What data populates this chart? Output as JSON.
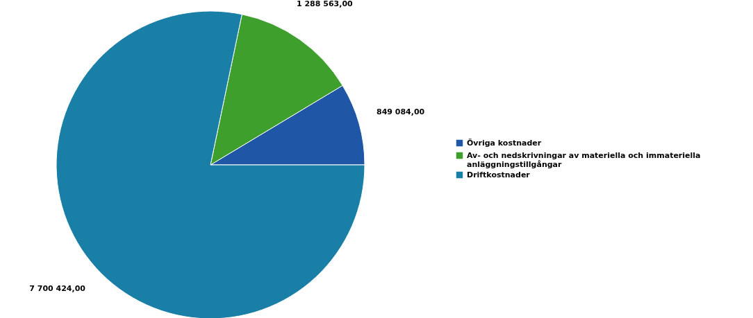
{
  "chart_data": {
    "type": "pie",
    "categories": [
      "Övriga kostnader",
      "Av- och nedskrivningar av materiella och immateriella anläggningstillgångar",
      "Driftkostnader"
    ],
    "values": [
      849084,
      1288563,
      7700424
    ],
    "colors": [
      "#1f56a6",
      "#3f9f2c",
      "#1a7fa6"
    ],
    "value_labels": [
      "849 084,00",
      "1 288 563,00",
      "7 700 424,00"
    ],
    "legend": "right"
  }
}
